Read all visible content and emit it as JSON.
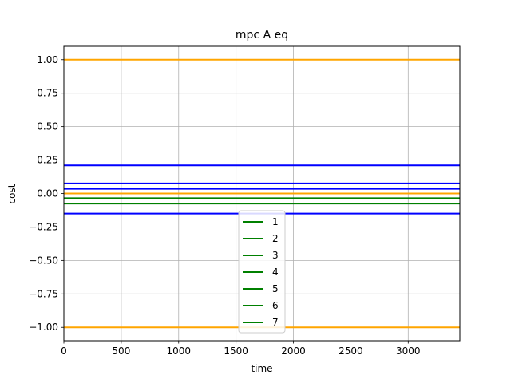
{
  "chart_data": {
    "type": "line",
    "title": "mpc A eq",
    "xlabel": "time",
    "ylabel": "cost",
    "xlim": [
      0,
      3450
    ],
    "ylim": [
      -1.1,
      1.1
    ],
    "xticks": [
      0,
      500,
      1000,
      1500,
      2000,
      2500,
      3000
    ],
    "xtick_labels": [
      "0",
      "500",
      "1000",
      "1500",
      "2000",
      "2500",
      "3000"
    ],
    "yticks": [
      1.0,
      0.75,
      0.5,
      0.25,
      0.0,
      -0.25,
      -0.5,
      -0.75,
      -1.0
    ],
    "ytick_labels": [
      "1.00",
      "0.75",
      "0.50",
      "0.25",
      "0.00",
      "−0.25",
      "−0.50",
      "−0.75",
      "−1.00"
    ],
    "grid": true,
    "legend_position": "bottom-center",
    "legend_entries": [
      "1",
      "2",
      "3",
      "4",
      "5",
      "6",
      "7"
    ],
    "legend_color": "#008000",
    "series": [
      {
        "color": "#ffa500",
        "y": 1.0
      },
      {
        "color": "#ffa500",
        "y": -1.0
      },
      {
        "color": "#ffa500",
        "y": 0.0
      },
      {
        "color": "#0000ff",
        "y": 0.21
      },
      {
        "color": "#0000ff",
        "y": 0.075
      },
      {
        "color": "#0000ff",
        "y": 0.035
      },
      {
        "color": "#0000ff",
        "y": -0.15
      },
      {
        "color": "#008000",
        "y": -0.035
      },
      {
        "color": "#008000",
        "y": -0.075
      }
    ]
  }
}
